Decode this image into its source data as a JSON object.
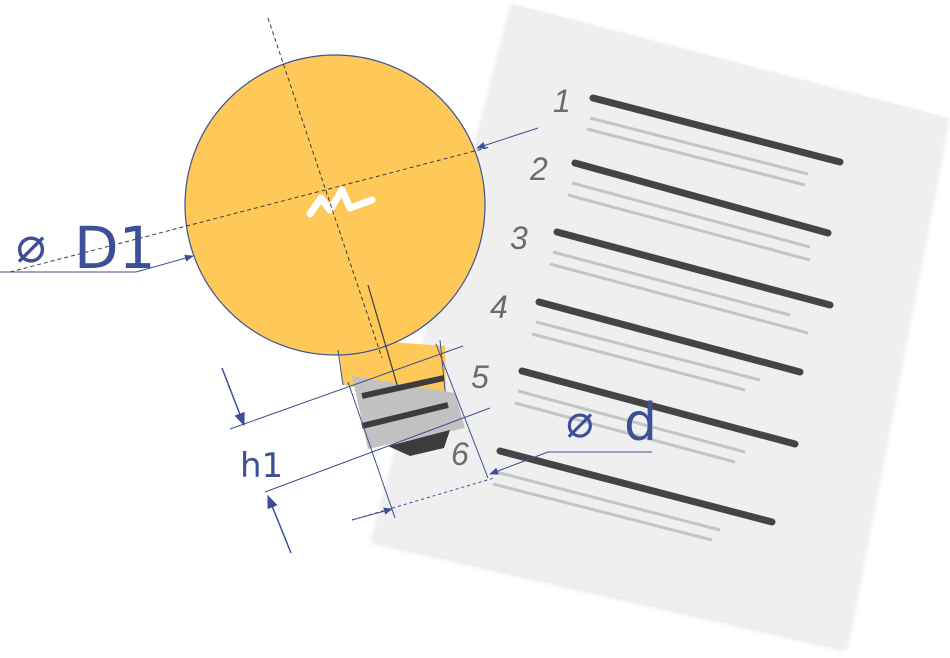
{
  "document": {
    "item_numbers": [
      "1",
      "2",
      "3",
      "4",
      "5",
      "6"
    ]
  },
  "dimensions": {
    "bulb_diameter": {
      "symbol": "⌀",
      "label": "D1"
    },
    "base_diameter": {
      "symbol": "⌀",
      "label": "d"
    },
    "base_height": {
      "label": "h1"
    }
  },
  "colors": {
    "bulb_fill": "#ffc95a",
    "outline": "#3d4f96",
    "base_fill": "#c2c2c2",
    "base_stripes": "#3c3c3c",
    "paper": "#efefef",
    "dark_line": "#444444",
    "light_line": "#c4c4c4"
  }
}
